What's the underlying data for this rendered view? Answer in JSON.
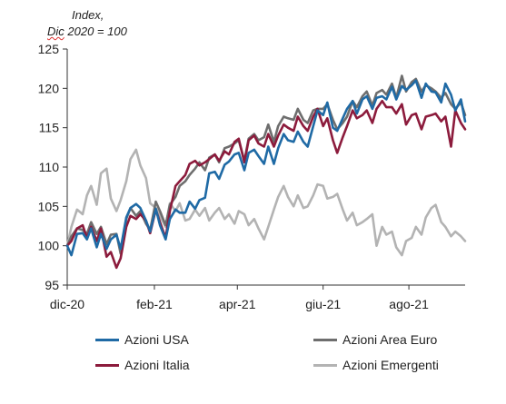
{
  "chart_data": {
    "type": "line",
    "ylabel_line1": "Index,",
    "ylabel_line2_a": "Dic",
    "ylabel_line2_b": " 2020 = 100",
    "ylim": [
      95,
      125
    ],
    "yticks": [
      95,
      100,
      105,
      110,
      115,
      120,
      125
    ],
    "x_range": [
      "2020-12-01",
      "2021-09-10"
    ],
    "xticks": [
      {
        "label": "dic-20",
        "date": "2020-12-01"
      },
      {
        "label": "feb-21",
        "date": "2021-02-01"
      },
      {
        "label": "apr-21",
        "date": "2021-04-01"
      },
      {
        "label": "giu-21",
        "date": "2021-06-01"
      },
      {
        "label": "ago-21",
        "date": "2021-08-01"
      }
    ],
    "grid": false,
    "legend_position": "bottom",
    "x_dates": [
      "2020-12-01",
      "2020-12-04",
      "2020-12-08",
      "2020-12-12",
      "2020-12-15",
      "2020-12-18",
      "2020-12-22",
      "2020-12-25",
      "2020-12-29",
      "2021-01-01",
      "2021-01-05",
      "2021-01-08",
      "2021-01-12",
      "2021-01-15",
      "2021-01-19",
      "2021-01-22",
      "2021-01-26",
      "2021-01-29",
      "2021-02-02",
      "2021-02-05",
      "2021-02-09",
      "2021-02-12",
      "2021-02-16",
      "2021-02-19",
      "2021-02-23",
      "2021-02-26",
      "2021-03-02",
      "2021-03-05",
      "2021-03-09",
      "2021-03-12",
      "2021-03-16",
      "2021-03-19",
      "2021-03-23",
      "2021-03-26",
      "2021-03-30",
      "2021-04-02",
      "2021-04-06",
      "2021-04-09",
      "2021-04-13",
      "2021-04-16",
      "2021-04-20",
      "2021-04-23",
      "2021-04-27",
      "2021-04-30",
      "2021-05-04",
      "2021-05-07",
      "2021-05-11",
      "2021-05-14",
      "2021-05-18",
      "2021-05-21",
      "2021-05-25",
      "2021-05-28",
      "2021-06-01",
      "2021-06-04",
      "2021-06-08",
      "2021-06-11",
      "2021-06-15",
      "2021-06-18",
      "2021-06-22",
      "2021-06-25",
      "2021-06-29",
      "2021-07-02",
      "2021-07-06",
      "2021-07-09",
      "2021-07-13",
      "2021-07-16",
      "2021-07-20",
      "2021-07-23",
      "2021-07-27",
      "2021-07-30",
      "2021-08-03",
      "2021-08-06",
      "2021-08-10",
      "2021-08-13",
      "2021-08-17",
      "2021-08-20",
      "2021-08-24",
      "2021-08-27",
      "2021-08-31",
      "2021-09-03",
      "2021-09-07",
      "2021-09-10"
    ],
    "series": [
      {
        "name": "Azioni USA",
        "color": "#1f6aa5",
        "values": [
          100,
          98.8,
          101.5,
          101.6,
          100.8,
          102.2,
          99.8,
          101.5,
          99.6,
          100.8,
          101.4,
          99.6,
          103.6,
          104.8,
          105.3,
          104.8,
          103.2,
          101.8,
          104.7,
          102.6,
          100.8,
          103.4,
          104.6,
          104.2,
          104.2,
          105.6,
          104.7,
          105.8,
          106.1,
          109.2,
          109.4,
          108.5,
          110.3,
          110.7,
          111.6,
          111.8,
          109.6,
          111.8,
          112.2,
          111.4,
          110.4,
          112.6,
          110.4,
          112.4,
          114.2,
          113.4,
          113.2,
          114.5,
          113.2,
          112.6,
          115.2,
          117.2,
          116.6,
          118.2,
          115.0,
          114.6,
          116.2,
          117.4,
          118.4,
          116.8,
          118.6,
          119.0,
          117.4,
          118.8,
          119.0,
          118.6,
          120.2,
          118.6,
          120.3,
          119.8,
          120.4,
          121.0,
          118.8,
          120.6,
          119.6,
          119.5,
          118.2,
          120.6,
          119.2,
          117.2,
          118.6,
          115.8
        ]
      },
      {
        "name": "Azioni Area Euro",
        "color": "#6e6e6e",
        "values": [
          100,
          101.2,
          102.2,
          102.0,
          101.5,
          103.0,
          101.5,
          102.4,
          100.2,
          101.4,
          101.5,
          99.0,
          103.4,
          104.8,
          103.8,
          104.4,
          102.8,
          102.0,
          105.6,
          104.4,
          102.6,
          105.2,
          106.2,
          107.6,
          108.2,
          109.0,
          109.8,
          110.6,
          109.6,
          111.2,
          111.6,
          110.6,
          112.4,
          112.6,
          113.0,
          113.4,
          110.8,
          113.6,
          114.2,
          113.4,
          113.8,
          115.4,
          113.2,
          115.2,
          116.4,
          116.2,
          116.0,
          117.4,
          116.0,
          115.6,
          117.2,
          117.4,
          117.4,
          118.0,
          116.0,
          114.8,
          115.6,
          116.4,
          118.4,
          117.6,
          119.0,
          119.6,
          117.8,
          119.4,
          119.8,
          119.2,
          120.6,
          118.8,
          121.6,
          119.6,
          120.8,
          121.2,
          119.6,
          120.4,
          120.0,
          119.6,
          118.8,
          119.4,
          118.0,
          117.4,
          118.2,
          116.6
        ]
      },
      {
        "name": "Azioni Italia",
        "color": "#8c1b3c",
        "values": [
          100,
          100.6,
          102.2,
          102.6,
          101.0,
          102.4,
          100.6,
          102.2,
          98.6,
          99.2,
          97.2,
          98.4,
          102.4,
          103.8,
          103.4,
          104.0,
          103.2,
          101.6,
          104.6,
          103.0,
          101.0,
          104.4,
          107.6,
          108.2,
          109.0,
          110.4,
          110.8,
          110.2,
          110.6,
          111.0,
          111.6,
          110.8,
          112.0,
          111.6,
          113.2,
          113.6,
          110.6,
          113.4,
          114.0,
          113.0,
          112.6,
          114.2,
          112.6,
          114.0,
          115.4,
          115.0,
          114.6,
          116.4,
          115.2,
          114.6,
          116.4,
          117.4,
          115.2,
          116.2,
          113.4,
          111.8,
          113.8,
          115.2,
          117.2,
          116.2,
          116.6,
          117.2,
          115.6,
          117.4,
          118.4,
          117.6,
          117.6,
          116.8,
          118.0,
          115.4,
          116.6,
          116.8,
          114.8,
          116.4,
          116.6,
          116.8,
          115.8,
          116.4,
          112.6,
          117.2,
          115.6,
          114.8
        ]
      },
      {
        "name": "Azioni Emergenti",
        "color": "#b3b3b3",
        "values": [
          100,
          102.4,
          104.6,
          104.0,
          106.4,
          107.6,
          105.2,
          109.2,
          109.8,
          106.0,
          104.4,
          105.8,
          108.2,
          111.0,
          112.2,
          110.2,
          108.6,
          105.4,
          104.8,
          103.8,
          102.4,
          105.4,
          104.4,
          105.4,
          103.2,
          103.4,
          104.6,
          103.8,
          104.8,
          103.2,
          104.2,
          104.8,
          103.4,
          104.0,
          102.8,
          104.4,
          104.0,
          102.6,
          103.4,
          102.2,
          100.8,
          102.4,
          104.6,
          106.2,
          107.6,
          106.2,
          105.0,
          106.4,
          104.8,
          105.0,
          106.4,
          107.8,
          107.6,
          106.0,
          106.2,
          106.6,
          104.6,
          103.2,
          104.2,
          102.6,
          103.0,
          103.4,
          104.0,
          100.0,
          102.4,
          101.4,
          101.8,
          99.8,
          98.8,
          100.6,
          101.0,
          102.4,
          101.4,
          103.6,
          104.8,
          105.2,
          103.0,
          102.4,
          101.2,
          101.8,
          101.2,
          100.6
        ]
      }
    ]
  }
}
